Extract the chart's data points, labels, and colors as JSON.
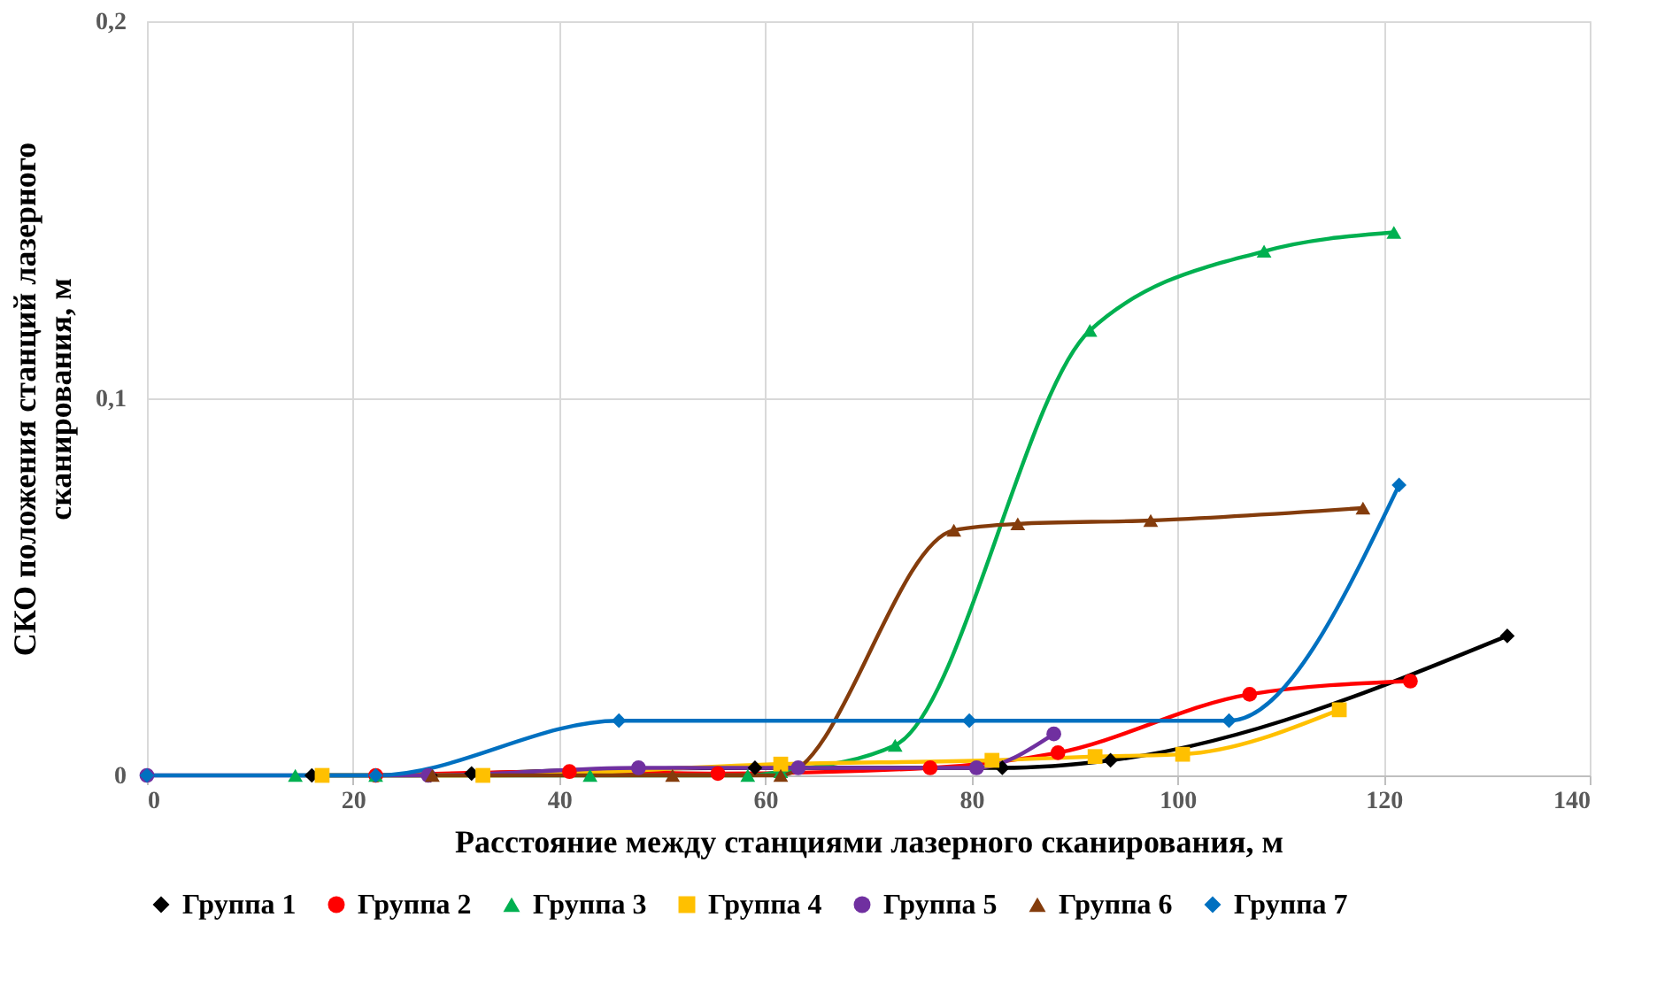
{
  "chart_data": {
    "type": "line",
    "xlabel": "Расстояние между станциями лазерного сканирования, м",
    "ylabel": "СКО положения станций лазерного сканирования, м",
    "xlim": [
      0,
      140
    ],
    "xticks": [
      0,
      20,
      40,
      60,
      80,
      100,
      120,
      140
    ],
    "ylim": [
      0,
      0.2
    ],
    "yticks": [
      {
        "value": 0,
        "label": "0"
      },
      {
        "value": 0.1,
        "label": "0,1"
      },
      {
        "value": 0.2,
        "label": "0,2"
      }
    ],
    "grid": true,
    "legend": "bottom",
    "line_style": "solid",
    "series": [
      {
        "name": "Группа 1",
        "color": "#000000",
        "marker": "diamond",
        "x": [
          16,
          27.5,
          31.5,
          59,
          83,
          93.5,
          132
        ],
        "values": [
          0,
          0,
          0.0005,
          0.002,
          0.002,
          0.004,
          0.037
        ]
      },
      {
        "name": "Группа 2",
        "color": "#ff0000",
        "marker": "circle",
        "x": [
          22.2,
          41,
          55.4,
          76,
          88.4,
          107,
          122.6
        ],
        "values": [
          0,
          0.001,
          0.0005,
          0.002,
          0.006,
          0.0215,
          0.025
        ]
      },
      {
        "name": "Группа 3",
        "color": "#00b050",
        "marker": "triangle",
        "x": [
          14.4,
          22.2,
          43,
          58.3,
          61.5,
          72.6,
          91.5,
          108.4,
          121
        ],
        "values": [
          0,
          0,
          0,
          0,
          0.001,
          0.008,
          0.118,
          0.139,
          0.144
        ]
      },
      {
        "name": "Группа 4",
        "color": "#ffc000",
        "marker": "square",
        "x": [
          17,
          32.6,
          61.5,
          82,
          92,
          100.5,
          115.7
        ],
        "values": [
          0,
          0,
          0.003,
          0.004,
          0.005,
          0.0056,
          0.0174
        ]
      },
      {
        "name": "Группа 5",
        "color": "#7030a0",
        "marker": "circle",
        "x": [
          0,
          27.3,
          47.7,
          63.2,
          80.5,
          88
        ],
        "values": [
          0,
          0,
          0.002,
          0.002,
          0.002,
          0.011
        ]
      },
      {
        "name": "Группа 6",
        "color": "#843c0c",
        "marker": "triangle",
        "x": [
          27.7,
          51,
          61.5,
          78.3,
          84.5,
          97.4,
          118
        ],
        "values": [
          0,
          0,
          0,
          0.065,
          0.0667,
          0.0676,
          0.0709
        ]
      },
      {
        "name": "Группа 7",
        "color": "#0070c0",
        "marker": "diamond",
        "x": [
          0,
          22.2,
          45.8,
          79.8,
          105,
          121.5
        ],
        "values": [
          0,
          0,
          0.0145,
          0.0145,
          0.0145,
          0.077
        ]
      }
    ]
  }
}
